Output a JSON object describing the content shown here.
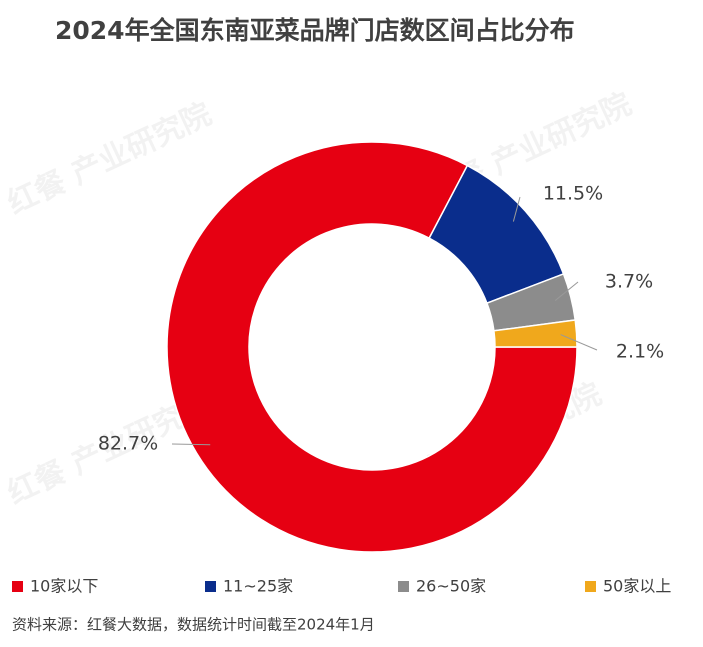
{
  "chart_data": {
    "type": "pie",
    "title": "2024年全国东南亚菜品牌门店数区间占比分布",
    "categories": [
      "10家以下",
      "11~25家",
      "26~50家",
      "50家以上"
    ],
    "values": [
      82.7,
      11.5,
      3.7,
      2.1
    ],
    "value_labels": [
      "82.7%",
      "11.5%",
      "3.7%",
      "2.1%"
    ],
    "colors": [
      "#e60012",
      "#0a2d8c",
      "#8c8c8c",
      "#f0a81c"
    ],
    "legend": "bottom",
    "source": "资料来源：红餐大数据，数据统计时间截至2024年1月",
    "watermark": "红餐 产业研究院"
  }
}
